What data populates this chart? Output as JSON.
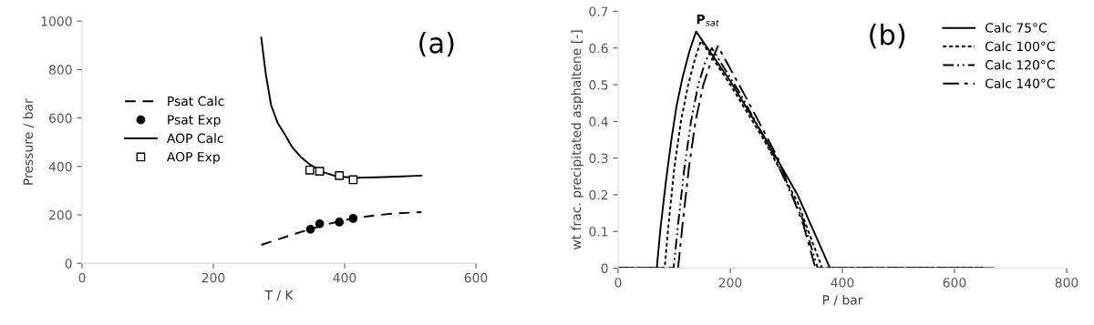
{
  "chart_data": [
    {
      "type": "line",
      "xlabel": "T / K",
      "ylabel": "Pressure / bar",
      "xlim": [
        0,
        600
      ],
      "xticks": [
        0,
        200,
        400,
        600
      ],
      "ylim": [
        0,
        1000
      ],
      "yticks": [
        0,
        200,
        400,
        600,
        800,
        1000
      ],
      "grid": false,
      "legend": "left",
      "annotations": [
        "(a)"
      ],
      "series": [
        {
          "name": "Psat Calc",
          "type": "line",
          "color": "#000000",
          "line_style": "dashed",
          "x": [
            273,
            300,
            325,
            350,
            375,
            400,
            425,
            450,
            475,
            500,
            517
          ],
          "values": [
            76,
            100,
            122,
            143,
            162,
            178,
            190,
            199,
            205,
            209,
            211
          ]
        },
        {
          "name": "Psat Exp",
          "type": "scatter",
          "color": "#000000",
          "marker": "circle",
          "x": [
            348,
            362,
            392,
            413
          ],
          "values": [
            140,
            163,
            170,
            185
          ]
        },
        {
          "name": "AOP Calc",
          "type": "line",
          "color": "#000000",
          "line_style": "solid",
          "x": [
            273,
            280,
            288,
            298,
            309,
            320,
            333,
            347,
            365,
            389,
            420,
            449,
            480,
            517
          ],
          "values": [
            932,
            780,
            653,
            580,
            532,
            480,
            440,
            408,
            378,
            358,
            353,
            355,
            358,
            362
          ]
        },
        {
          "name": "AOP Exp",
          "type": "scatter",
          "color": "#000000",
          "marker": "square",
          "x": [
            347,
            362,
            392,
            413
          ],
          "values": [
            385,
            380,
            362,
            345
          ]
        }
      ]
    },
    {
      "type": "line",
      "xlabel": "P / bar",
      "ylabel": "wt frac. precipitated asphaltene [-]",
      "xlim": [
        0,
        800
      ],
      "xticks": [
        0,
        200,
        400,
        600,
        800
      ],
      "ylim": [
        0,
        0.7
      ],
      "yticks": [
        0,
        0.1,
        0.2,
        0.3,
        0.4,
        0.5,
        0.6,
        0.7
      ],
      "grid": false,
      "legend": "top right",
      "annotations": [
        "(b)",
        {
          "text": "P$_{sat}$",
          "x": 139,
          "y": 0.645
        }
      ],
      "series": [
        {
          "name": "Calc 75°C",
          "color": "#000000",
          "line_style": "solid",
          "x": [
            0,
            69,
            75,
            85,
            95,
            104,
            115,
            127,
            139,
            200,
            260,
            320,
            378,
            650
          ],
          "values": [
            0,
            0,
            0.1,
            0.233,
            0.35,
            0.44,
            0.52,
            0.59,
            0.645,
            0.51,
            0.36,
            0.2,
            0,
            0
          ]
        },
        {
          "name": "Calc 100°C",
          "color": "#000000",
          "line_style": "dotted",
          "x": [
            0,
            83,
            90,
            100,
            112,
            125,
            137,
            148,
            200,
            260,
            320,
            364,
            650
          ],
          "values": [
            0,
            0,
            0.12,
            0.27,
            0.4,
            0.5,
            0.57,
            0.62,
            0.5,
            0.35,
            0.18,
            0,
            0
          ]
        },
        {
          "name": "Calc 120°C",
          "color": "#000000",
          "line_style": "dashdotdot",
          "x": [
            0,
            99,
            107,
            118,
            130,
            143,
            155,
            167,
            220,
            280,
            330,
            356,
            650
          ],
          "values": [
            0,
            0,
            0.12,
            0.27,
            0.4,
            0.5,
            0.56,
            0.6,
            0.47,
            0.3,
            0.13,
            0,
            0
          ]
        },
        {
          "name": "Calc 140°C",
          "color": "#000000",
          "line_style": "dashdot",
          "x": [
            0,
            107,
            115,
            126,
            138,
            152,
            165,
            178,
            230,
            285,
            330,
            352,
            675
          ],
          "values": [
            0,
            0,
            0.12,
            0.27,
            0.4,
            0.5,
            0.56,
            0.605,
            0.46,
            0.3,
            0.12,
            0,
            0
          ]
        }
      ]
    }
  ]
}
